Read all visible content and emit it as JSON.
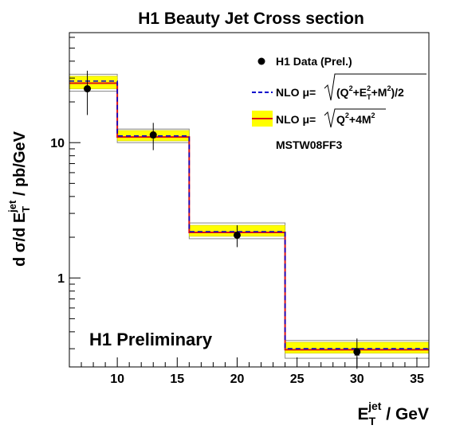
{
  "chart_data": {
    "type": "histogram",
    "title": "H1 Beauty Jet Cross section",
    "xlabel": {
      "main": "E",
      "sub": "T",
      "sup": "jet",
      "unit": " / GeV"
    },
    "ylabel": {
      "main": "d σ/d E",
      "sub": "T",
      "sup": "jet",
      "unit": " / pb/GeV"
    },
    "xlim": [
      6,
      36
    ],
    "ylim": [
      0.22,
      65
    ],
    "yscale": "log",
    "x_ticks": [
      10,
      15,
      20,
      25,
      30,
      35
    ],
    "y_ticks": [
      {
        "value": 1,
        "label": "1"
      },
      {
        "value": 10,
        "label": "10"
      }
    ],
    "bins": [
      6,
      10,
      16,
      24,
      36
    ],
    "series": [
      {
        "name": "H1 Data (Prel.)",
        "x": [
          7.5,
          13,
          20,
          30
        ],
        "y": [
          25.0,
          11.4,
          2.07,
          0.285
        ],
        "yerr_stat_low": [
          0.9,
          0.5,
          0.08,
          0.016
        ],
        "yerr_stat_high": [
          0.9,
          0.5,
          0.08,
          0.016
        ],
        "yerr_tot_low": [
          9.0,
          2.6,
          0.38,
          0.072
        ],
        "yerr_tot_high": [
          9.0,
          2.6,
          0.38,
          0.072
        ]
      },
      {
        "name": "NLO μ=√(Q²+E_T²+M²)/2",
        "values": [
          28.5,
          11.2,
          2.2,
          0.3
        ]
      },
      {
        "name": "NLO μ=√(Q²+4M²)",
        "values": [
          27.5,
          11.0,
          2.17,
          0.295
        ],
        "band_low": [
          25.0,
          10.3,
          2.03,
          0.278
        ],
        "band_high": [
          31.0,
          12.3,
          2.45,
          0.335
        ],
        "band_hadr_low": [
          24.0,
          10.0,
          1.95,
          0.255
        ],
        "band_hadr_high": [
          32.0,
          12.6,
          2.55,
          0.345
        ]
      }
    ],
    "legend": {
      "position": "top-right",
      "data": "H1 Data (Prel.)",
      "nlo1_prefix": "NLO  μ=",
      "nlo1_radicand": "(Q",
      "nlo1_rest": "+E",
      "nlo1_tail": "+M",
      "nlo1_end": ")/2",
      "nlo2_prefix": "NLO  μ=",
      "nlo2_radicand": "Q",
      "nlo2_rest": "+4M",
      "note": "MSTW08FF3"
    },
    "annotation": "H1 Preliminary",
    "grid": false,
    "colors": {
      "band_outer": "#ffffff",
      "band_yellow": "#ffff00",
      "nlo1": "#0000cc",
      "nlo2": "#dd1111",
      "data": "#000000"
    }
  }
}
